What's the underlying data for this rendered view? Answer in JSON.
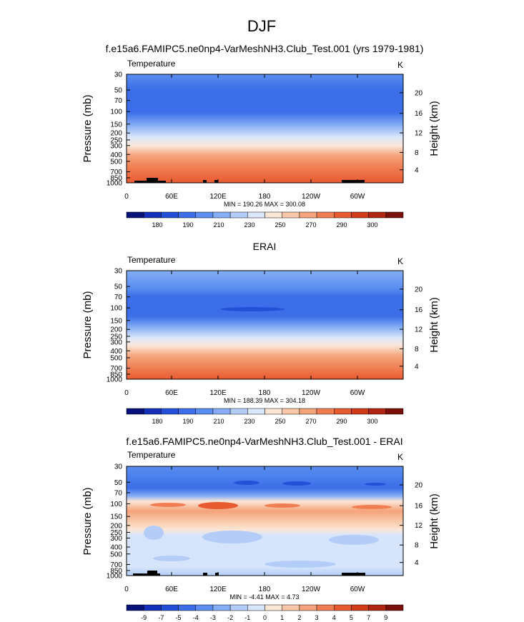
{
  "page": {
    "title": "DJF"
  },
  "chart_data": [
    {
      "type": "heatmap",
      "title": "f.e15a6.FAMIPC5.ne0np4-VarMeshNH3.Club_Test.001 (yrs 1979-1981)",
      "left_label": "Temperature",
      "right_label": "K",
      "ylabel": "Pressure (mb)",
      "y2label": "Height (km)",
      "pressure_ticks": [
        "30",
        "50",
        "70",
        "100",
        "150",
        "200",
        "250",
        "300",
        "400",
        "500",
        "700",
        "850",
        "1000"
      ],
      "height_ticks": [
        "20",
        "16",
        "12",
        "8",
        "4"
      ],
      "x_ticks": [
        "0",
        "60E",
        "120E",
        "180",
        "120W",
        "60W"
      ],
      "stats": "MIN = 190.26  MAX = 300.08",
      "colorbar_labels": [
        "180",
        "190",
        "210",
        "230",
        "250",
        "270",
        "290",
        "300"
      ]
    },
    {
      "type": "heatmap",
      "title": "ERAI",
      "left_label": "Temperature",
      "right_label": "K",
      "ylabel": "Pressure (mb)",
      "y2label": "Height (km)",
      "pressure_ticks": [
        "30",
        "50",
        "70",
        "100",
        "150",
        "200",
        "250",
        "300",
        "400",
        "500",
        "700",
        "850",
        "1000"
      ],
      "height_ticks": [
        "20",
        "16",
        "12",
        "8",
        "4"
      ],
      "x_ticks": [
        "0",
        "60E",
        "120E",
        "180",
        "120W",
        "60W"
      ],
      "stats": "MIN = 188.39  MAX = 304.18",
      "colorbar_labels": [
        "180",
        "190",
        "210",
        "230",
        "250",
        "270",
        "290",
        "300"
      ]
    },
    {
      "type": "heatmap",
      "title": "f.e15a6.FAMIPC5.ne0np4-VarMeshNH3.Club_Test.001 - ERAI",
      "left_label": "Temperature",
      "right_label": "K",
      "ylabel": "Pressure (mb)",
      "y2label": "Height (km)",
      "pressure_ticks": [
        "30",
        "50",
        "70",
        "100",
        "150",
        "200",
        "250",
        "300",
        "400",
        "500",
        "700",
        "850",
        "1000"
      ],
      "height_ticks": [
        "20",
        "16",
        "12",
        "8",
        "4"
      ],
      "x_ticks": [
        "0",
        "60E",
        "120E",
        "180",
        "120W",
        "60W"
      ],
      "stats": "MIN =  -4.41  MAX =   4.73",
      "colorbar_labels": [
        "-9",
        "-7",
        "-5",
        "-4",
        "-3",
        "-2",
        "-1",
        "0",
        "1",
        "2",
        "3",
        "4",
        "5",
        "7",
        "9"
      ]
    }
  ],
  "colors": {
    "temp_scale": [
      "#08107a",
      "#1530b8",
      "#2450d8",
      "#3b6ee8",
      "#5a8ef0",
      "#85adf5",
      "#b3cdf8",
      "#dbe8fb",
      "#fbe6d6",
      "#f8c8a8",
      "#f5a37b",
      "#f07e52",
      "#e85a30",
      "#d03c18",
      "#b02610",
      "#7a1008"
    ],
    "diff_scale": [
      "#08107a",
      "#1530b8",
      "#2450d8",
      "#3b6ee8",
      "#5a8ef0",
      "#85adf5",
      "#b3cdf8",
      "#d6e5fb",
      "#fbe6d6",
      "#f8c8a8",
      "#f5a37b",
      "#f07e52",
      "#e85a30",
      "#d03c18",
      "#b02610",
      "#7a1008"
    ],
    "terrain": "#000000"
  }
}
